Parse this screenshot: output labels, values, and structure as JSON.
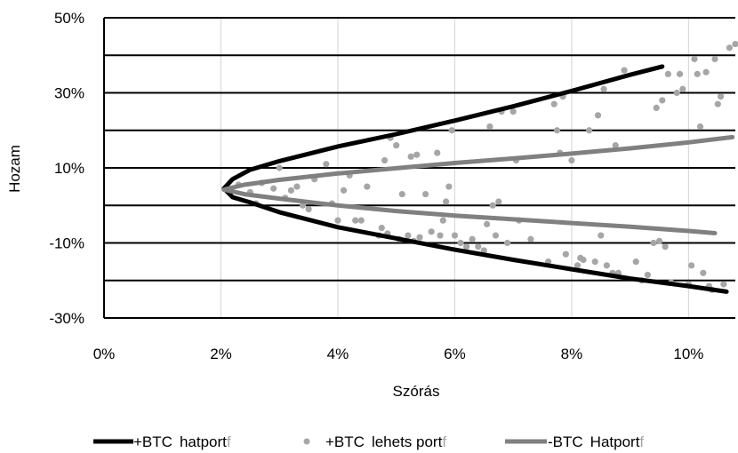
{
  "chart_data": {
    "type": "scatter",
    "xlabel": "Szórás",
    "ylabel": "Hozam",
    "xlim": [
      0,
      10.8
    ],
    "ylim": [
      -30,
      50
    ],
    "x_ticks": [
      0,
      2,
      4,
      6,
      8,
      10
    ],
    "x_tick_labels": [
      "0%",
      "2%",
      "4%",
      "6%",
      "8%",
      "10%"
    ],
    "y_ticks": [
      -30,
      -10,
      10,
      30,
      50
    ],
    "y_tick_labels": [
      "-30%",
      "-10%",
      "10%",
      "30%",
      "50%"
    ],
    "horizontal_gridlines": [
      -30,
      -20,
      -10,
      0,
      10,
      20,
      30,
      40,
      50
    ],
    "vertical_gridlines": [
      2,
      4,
      6,
      8,
      10
    ],
    "legend_position": "bottom",
    "series": [
      {
        "name": "+BTC hatportf",
        "kind": "line",
        "color": "#000000",
        "points": [
          [
            9.55,
            37.0
          ],
          [
            9.0,
            34.8
          ],
          [
            8.0,
            30.5
          ],
          [
            7.0,
            26.4
          ],
          [
            6.0,
            22.6
          ],
          [
            5.0,
            19.0
          ],
          [
            4.0,
            15.7
          ],
          [
            3.0,
            11.8
          ],
          [
            2.5,
            9.5
          ],
          [
            2.2,
            7.0
          ],
          [
            2.05,
            4.5
          ],
          [
            2.2,
            2.2
          ],
          [
            2.5,
            0.8
          ],
          [
            3.0,
            -1.8
          ],
          [
            4.0,
            -5.8
          ],
          [
            5.0,
            -8.8
          ],
          [
            6.0,
            -11.8
          ],
          [
            7.0,
            -14.5
          ],
          [
            8.0,
            -17.0
          ],
          [
            9.0,
            -19.5
          ],
          [
            10.0,
            -21.5
          ],
          [
            10.65,
            -23.0
          ]
        ]
      },
      {
        "name": "+BTC lehets portf",
        "kind": "scatter",
        "color": "#a6a6a6",
        "points": [
          [
            2.1,
            4.5
          ],
          [
            2.3,
            5.5
          ],
          [
            2.5,
            3.5
          ],
          [
            2.6,
            0.5
          ],
          [
            2.7,
            6.0
          ],
          [
            2.9,
            4.5
          ],
          [
            3.0,
            10.0
          ],
          [
            3.1,
            2.0
          ],
          [
            3.2,
            4.0
          ],
          [
            3.3,
            5.0
          ],
          [
            3.4,
            0.0
          ],
          [
            3.5,
            -1.0
          ],
          [
            3.6,
            7.0
          ],
          [
            3.8,
            11.0
          ],
          [
            3.9,
            0.5
          ],
          [
            4.0,
            -4.0
          ],
          [
            4.1,
            4.0
          ],
          [
            4.2,
            8.0
          ],
          [
            4.3,
            -4.0
          ],
          [
            4.4,
            -4.0
          ],
          [
            4.5,
            5.0
          ],
          [
            4.7,
            -8.0
          ],
          [
            4.75,
            -6.0
          ],
          [
            4.8,
            12.0
          ],
          [
            4.85,
            -7.5
          ],
          [
            4.9,
            18.0
          ],
          [
            5.0,
            16.0
          ],
          [
            5.05,
            -9.0
          ],
          [
            5.1,
            3.0
          ],
          [
            5.2,
            -8.0
          ],
          [
            5.25,
            13.0
          ],
          [
            5.3,
            -9.5
          ],
          [
            5.35,
            13.5
          ],
          [
            5.4,
            -8.5
          ],
          [
            5.5,
            3.0
          ],
          [
            5.6,
            -7.0
          ],
          [
            5.7,
            14.0
          ],
          [
            5.75,
            -8.0
          ],
          [
            5.8,
            -4.0
          ],
          [
            5.85,
            1.0
          ],
          [
            5.9,
            5.0
          ],
          [
            5.95,
            20.0
          ],
          [
            6.0,
            -8.0
          ],
          [
            6.1,
            -10.0
          ],
          [
            6.2,
            -11.0
          ],
          [
            6.3,
            -9.0
          ],
          [
            6.4,
            -11.0
          ],
          [
            6.5,
            -12.0
          ],
          [
            6.55,
            -5.0
          ],
          [
            6.6,
            21.0
          ],
          [
            6.65,
            0.0
          ],
          [
            6.7,
            -8.0
          ],
          [
            6.75,
            1.0
          ],
          [
            6.8,
            25.0
          ],
          [
            6.9,
            -10.0
          ],
          [
            7.0,
            25.0
          ],
          [
            7.05,
            12.0
          ],
          [
            7.1,
            -4.0
          ],
          [
            7.3,
            -9.0
          ],
          [
            7.6,
            -15.0
          ],
          [
            7.7,
            27.0
          ],
          [
            7.75,
            20.0
          ],
          [
            7.8,
            14.0
          ],
          [
            7.85,
            29.0
          ],
          [
            7.9,
            -13.0
          ],
          [
            8.0,
            12.0
          ],
          [
            8.1,
            -16.0
          ],
          [
            8.15,
            -14.0
          ],
          [
            8.2,
            -14.5
          ],
          [
            8.3,
            20.0
          ],
          [
            8.4,
            -15.0
          ],
          [
            8.45,
            24.0
          ],
          [
            8.5,
            -8.0
          ],
          [
            8.55,
            31.0
          ],
          [
            8.6,
            -16.0
          ],
          [
            8.7,
            -18.0
          ],
          [
            8.75,
            16.0
          ],
          [
            8.8,
            -18.0
          ],
          [
            8.9,
            36.0
          ],
          [
            9.1,
            -15.0
          ],
          [
            9.2,
            -20.0
          ],
          [
            9.3,
            -18.5
          ],
          [
            9.4,
            -10.0
          ],
          [
            9.45,
            26.0
          ],
          [
            9.5,
            -9.5
          ],
          [
            9.55,
            28.0
          ],
          [
            9.6,
            -11.0
          ],
          [
            9.65,
            35.0
          ],
          [
            9.7,
            -20.5
          ],
          [
            9.8,
            30.0
          ],
          [
            9.85,
            35.0
          ],
          [
            9.9,
            31.0
          ],
          [
            10.0,
            -21.0
          ],
          [
            10.05,
            -16.0
          ],
          [
            10.1,
            39.0
          ],
          [
            10.15,
            35.0
          ],
          [
            10.2,
            21.0
          ],
          [
            10.25,
            -18.0
          ],
          [
            10.3,
            35.5
          ],
          [
            10.35,
            -21.5
          ],
          [
            10.4,
            -22.5
          ],
          [
            10.45,
            39.0
          ],
          [
            10.5,
            27.0
          ],
          [
            10.55,
            29.0
          ],
          [
            10.6,
            -21.0
          ],
          [
            10.7,
            42.0
          ],
          [
            10.8,
            43.0
          ]
        ]
      },
      {
        "name": "-BTC Hatportf",
        "kind": "line",
        "color": "#808080",
        "points": [
          [
            10.75,
            18.2
          ],
          [
            10.0,
            16.8
          ],
          [
            9.0,
            15.2
          ],
          [
            8.0,
            13.8
          ],
          [
            7.0,
            12.5
          ],
          [
            6.0,
            11.3
          ],
          [
            5.0,
            9.9
          ],
          [
            4.0,
            8.5
          ],
          [
            3.0,
            6.8
          ],
          [
            2.4,
            5.5
          ],
          [
            2.05,
            4.2
          ],
          [
            2.4,
            3.0
          ],
          [
            3.0,
            1.8
          ],
          [
            4.0,
            0.0
          ],
          [
            5.0,
            -1.5
          ],
          [
            6.0,
            -2.7
          ],
          [
            7.0,
            -3.7
          ],
          [
            8.0,
            -4.7
          ],
          [
            9.0,
            -5.7
          ],
          [
            10.0,
            -6.8
          ],
          [
            10.45,
            -7.4
          ]
        ]
      }
    ],
    "legend": [
      {
        "label": "+BTC",
        "suffix": "hatport",
        "tail": "f"
      },
      {
        "label": "+BTC",
        "suffix": "lehets port",
        "tail": "f"
      },
      {
        "label": "-BTC",
        "suffix": "Hatport",
        "tail": "f"
      }
    ]
  }
}
